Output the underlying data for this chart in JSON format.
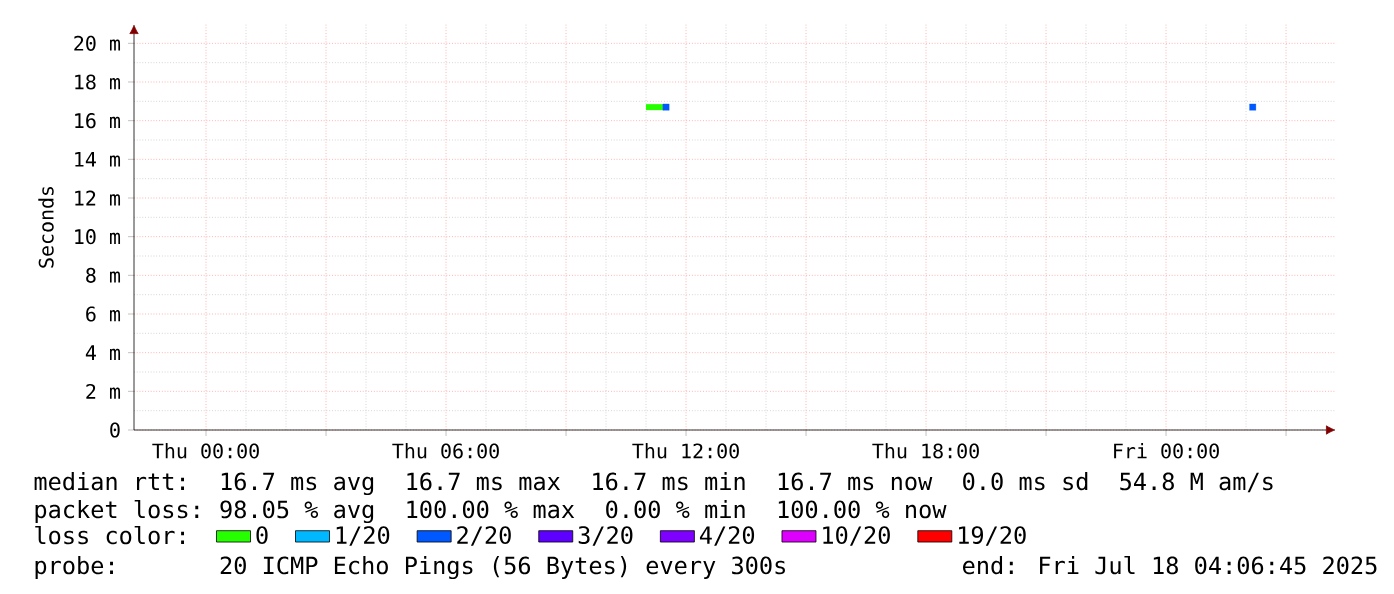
{
  "chart_data": {
    "type": "line",
    "ylabel": "Seconds",
    "xlim": [
      "2025-07-16T22:12",
      "2025-07-18T04:15"
    ],
    "ylim": [
      0,
      21
    ],
    "xticks": [
      {
        "value": "2025-07-17T00:00",
        "label": "Thu 00:00"
      },
      {
        "value": "2025-07-17T03:00",
        "label": null
      },
      {
        "value": "2025-07-17T06:00",
        "label": "Thu 06:00"
      },
      {
        "value": "2025-07-17T09:00",
        "label": null
      },
      {
        "value": "2025-07-17T12:00",
        "label": "Thu 12:00"
      },
      {
        "value": "2025-07-17T15:00",
        "label": null
      },
      {
        "value": "2025-07-17T18:00",
        "label": "Thu 18:00"
      },
      {
        "value": "2025-07-17T21:00",
        "label": null
      },
      {
        "value": "2025-07-18T00:00",
        "label": "Fri 00:00"
      },
      {
        "value": "2025-07-18T03:00",
        "label": null
      }
    ],
    "yticks": [
      0,
      {
        "value": 2,
        "label": "2 m"
      },
      {
        "value": 4,
        "label": "4 m"
      },
      {
        "value": 6,
        "label": "6 m"
      },
      {
        "value": 8,
        "label": "8 m"
      },
      {
        "value": 10,
        "label": "10 m"
      },
      {
        "value": 12,
        "label": "12 m"
      },
      {
        "value": 14,
        "label": "14 m"
      },
      {
        "value": 16,
        "label": "16 m"
      },
      {
        "value": 18,
        "label": "18 m"
      },
      {
        "value": 20,
        "label": "20 m"
      }
    ],
    "grid": true,
    "legend": "bottom",
    "legend_title": "loss color:",
    "marker": "none",
    "line_style": "solid",
    "series": [
      {
        "name": "0",
        "color": "#26ff00",
        "x": [
          "2025-07-17T11:00",
          "2025-07-17T11:27"
        ],
        "values": [
          16.7,
          16.7
        ]
      },
      {
        "name": "1/20",
        "color": "#00b8ff"
      },
      {
        "name": "2/20",
        "color": "#0059ff",
        "type": "scatter",
        "marker": "square",
        "x": [
          "2025-07-17T11:30",
          "2025-07-18T02:10"
        ],
        "values": [
          16.7,
          16.7
        ]
      },
      {
        "name": "3/20",
        "color": "#5e00ff"
      },
      {
        "name": "4/20",
        "color": "#7e00ff"
      },
      {
        "name": "10/20",
        "color": "#dd00ff"
      },
      {
        "name": "19/20",
        "color": "#ff0000"
      }
    ],
    "annotations": [
      "median rtt:",
      "16.7 ms avg",
      "16.7 ms max",
      "16.7 ms min",
      "16.7 ms now",
      "0.0 ms sd",
      "54.8 M am/s",
      "packet loss:",
      "98.05 % avg",
      "100.00 % max",
      "0.00 % min",
      "100.00 % now",
      "probe:",
      "20 ICMP Echo Pings (56 Bytes) every 300s",
      "end: Fri Jul 18 04:06:45 2025"
    ]
  }
}
